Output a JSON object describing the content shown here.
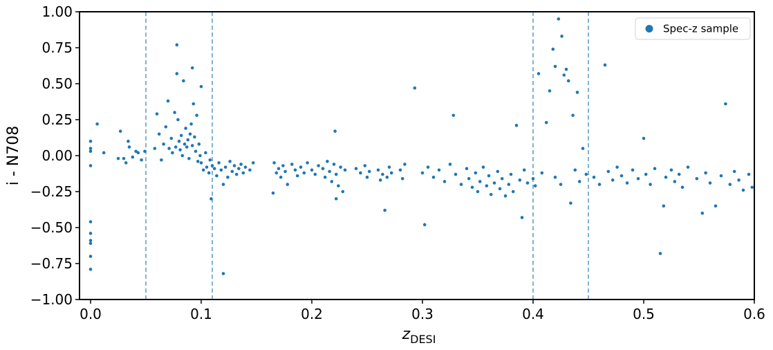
{
  "chart_data": {
    "type": "scatter",
    "xlabel": {
      "text": "z",
      "subscript": "DESI"
    },
    "ylabel": "i - N708",
    "xlim": [
      -0.01,
      0.6
    ],
    "ylim": [
      -1.0,
      1.0
    ],
    "xticks": [
      {
        "value": 0,
        "label": "0.0"
      },
      0.1,
      0.2,
      0.3,
      0.4,
      0.5,
      0.6
    ],
    "yticks": [
      {
        "value": -1,
        "label": "−1.00"
      },
      {
        "value": -0.75,
        "label": "−0.75"
      },
      {
        "value": -0.5,
        "label": "−0.50"
      },
      {
        "value": -0.25,
        "label": "−0.25"
      },
      {
        "value": 0,
        "label": "0.00"
      },
      {
        "value": 0.25,
        "label": "0.25"
      },
      {
        "value": 0.5,
        "label": "0.50"
      },
      {
        "value": 0.75,
        "label": "0.75"
      },
      {
        "value": 1,
        "label": "1.00"
      }
    ],
    "vlines": [
      0.05,
      0.11,
      0.4,
      0.45
    ],
    "vline_color": "#1f77b4",
    "legend": "upper right",
    "series": [
      {
        "name": "Spec-z sample",
        "color": "#1f77b4",
        "x": [
          0,
          0,
          0,
          0,
          0,
          0,
          0,
          0,
          0,
          0,
          0.006,
          0.012,
          0.025,
          0.027,
          0.03,
          0.032,
          0.034,
          0.035,
          0.038,
          0.041,
          0.043,
          0.046,
          0.049,
          0.058,
          0.06,
          0.062,
          0.064,
          0.066,
          0.068,
          0.07,
          0.071,
          0.073,
          0.074,
          0.076,
          0.077,
          0.078,
          0.078,
          0.079,
          0.08,
          0.081,
          0.082,
          0.083,
          0.084,
          0.085,
          0.086,
          0.087,
          0.088,
          0.089,
          0.09,
          0.091,
          0.092,
          0.092,
          0.093,
          0.094,
          0.095,
          0.096,
          0.097,
          0.098,
          0.099,
          0.1,
          0.1,
          0.102,
          0.104,
          0.105,
          0.107,
          0.108,
          0.109,
          0.11,
          0.112,
          0.114,
          0.116,
          0.118,
          0.12,
          0.12,
          0.122,
          0.124,
          0.126,
          0.128,
          0.13,
          0.132,
          0.134,
          0.136,
          0.138,
          0.14,
          0.144,
          0.147,
          0.165,
          0.166,
          0.168,
          0.17,
          0.172,
          0.174,
          0.176,
          0.178,
          0.182,
          0.185,
          0.187,
          0.19,
          0.193,
          0.196,
          0.2,
          0.203,
          0.206,
          0.21,
          0.212,
          0.214,
          0.216,
          0.218,
          0.22,
          0.221,
          0.222,
          0.224,
          0.226,
          0.228,
          0.23,
          0.222,
          0.24,
          0.244,
          0.248,
          0.25,
          0.252,
          0.26,
          0.262,
          0.264,
          0.266,
          0.268,
          0.27,
          0.272,
          0.28,
          0.282,
          0.284,
          0.293,
          0.3,
          0.302,
          0.305,
          0.31,
          0.315,
          0.32,
          0.325,
          0.328,
          0.33,
          0.335,
          0.34,
          0.342,
          0.345,
          0.348,
          0.35,
          0.352,
          0.355,
          0.358,
          0.36,
          0.362,
          0.365,
          0.368,
          0.37,
          0.372,
          0.375,
          0.378,
          0.38,
          0.382,
          0.385,
          0.388,
          0.39,
          0.392,
          0.395,
          0.4,
          0.402,
          0.405,
          0.408,
          0.412,
          0.415,
          0.418,
          0.42,
          0.42,
          0.423,
          0.425,
          0.426,
          0.428,
          0.43,
          0.432,
          0.434,
          0.436,
          0.438,
          0.44,
          0.442,
          0.445,
          0.448,
          0.455,
          0.46,
          0.465,
          0.468,
          0.472,
          0.476,
          0.48,
          0.485,
          0.49,
          0.495,
          0.5,
          0.502,
          0.506,
          0.51,
          0.515,
          0.518,
          0.52,
          0.525,
          0.528,
          0.532,
          0.535,
          0.54,
          0.548,
          0.553,
          0.556,
          0.56,
          0.565,
          0.57,
          0.574,
          0.578,
          0.582,
          0.586,
          0.59,
          0.595,
          0.598
        ],
        "values": [
          0.05,
          0.1,
          -0.07,
          0.03,
          -0.46,
          -0.54,
          -0.59,
          -0.61,
          -0.7,
          -0.79,
          0.22,
          0.02,
          -0.02,
          0.17,
          -0.02,
          -0.05,
          0.1,
          0.06,
          -0.01,
          0.03,
          0.02,
          -0.03,
          0.03,
          0.05,
          0.29,
          0.15,
          -0.03,
          0.08,
          0.2,
          0.38,
          0.05,
          0.12,
          0.02,
          0.3,
          0.06,
          0.77,
          0.57,
          0.25,
          0.1,
          0.04,
          0.14,
          0.0,
          0.52,
          0.08,
          0.19,
          0.06,
          0.11,
          -0.02,
          0.15,
          0.22,
          0.61,
          0.07,
          0.36,
          0.13,
          0.03,
          0.28,
          -0.04,
          0.08,
          0.0,
          0.48,
          -0.05,
          -0.1,
          0.02,
          -0.08,
          -0.12,
          -0.03,
          -0.3,
          -0.07,
          -0.09,
          -0.14,
          -0.05,
          -0.1,
          -0.82,
          -0.2,
          -0.08,
          -0.15,
          -0.04,
          -0.11,
          -0.07,
          -0.13,
          -0.09,
          -0.06,
          -0.12,
          -0.08,
          -0.1,
          -0.05,
          -0.26,
          -0.05,
          -0.12,
          -0.09,
          -0.15,
          -0.07,
          -0.11,
          -0.2,
          -0.06,
          -0.1,
          -0.14,
          -0.08,
          -0.12,
          -0.05,
          -0.1,
          -0.13,
          -0.07,
          -0.09,
          -0.15,
          -0.04,
          -0.11,
          -0.18,
          -0.06,
          0.17,
          -0.13,
          -0.21,
          -0.08,
          -0.25,
          -0.1,
          -0.3,
          -0.09,
          -0.12,
          -0.07,
          -0.15,
          -0.11,
          -0.1,
          -0.17,
          -0.13,
          -0.38,
          -0.15,
          -0.08,
          -0.12,
          -0.1,
          -0.16,
          -0.06,
          0.47,
          -0.12,
          -0.48,
          -0.08,
          -0.15,
          -0.1,
          -0.18,
          -0.06,
          0.28,
          -0.13,
          -0.2,
          -0.09,
          -0.16,
          -0.22,
          -0.12,
          -0.25,
          -0.18,
          -0.08,
          -0.21,
          -0.14,
          -0.27,
          -0.19,
          -0.11,
          -0.23,
          -0.16,
          -0.28,
          -0.2,
          -0.13,
          -0.25,
          0.21,
          -0.17,
          -0.43,
          -0.1,
          -0.19,
          -0.16,
          -0.21,
          0.57,
          -0.12,
          0.23,
          0.45,
          0.74,
          -0.15,
          0.62,
          0.95,
          -0.2,
          0.83,
          0.56,
          0.6,
          0.52,
          -0.33,
          0.28,
          -0.1,
          0.44,
          -0.18,
          0.05,
          -0.13,
          -0.15,
          -0.2,
          0.63,
          -0.11,
          -0.17,
          -0.08,
          -0.14,
          -0.19,
          -0.1,
          -0.16,
          0.12,
          -0.13,
          -0.2,
          -0.09,
          -0.68,
          -0.35,
          -0.15,
          -0.1,
          -0.18,
          -0.13,
          -0.22,
          -0.08,
          -0.16,
          -0.4,
          -0.12,
          -0.19,
          -0.35,
          -0.14,
          0.36,
          -0.2,
          -0.11,
          -0.17,
          -0.24,
          -0.13,
          -0.22
        ]
      }
    ]
  }
}
